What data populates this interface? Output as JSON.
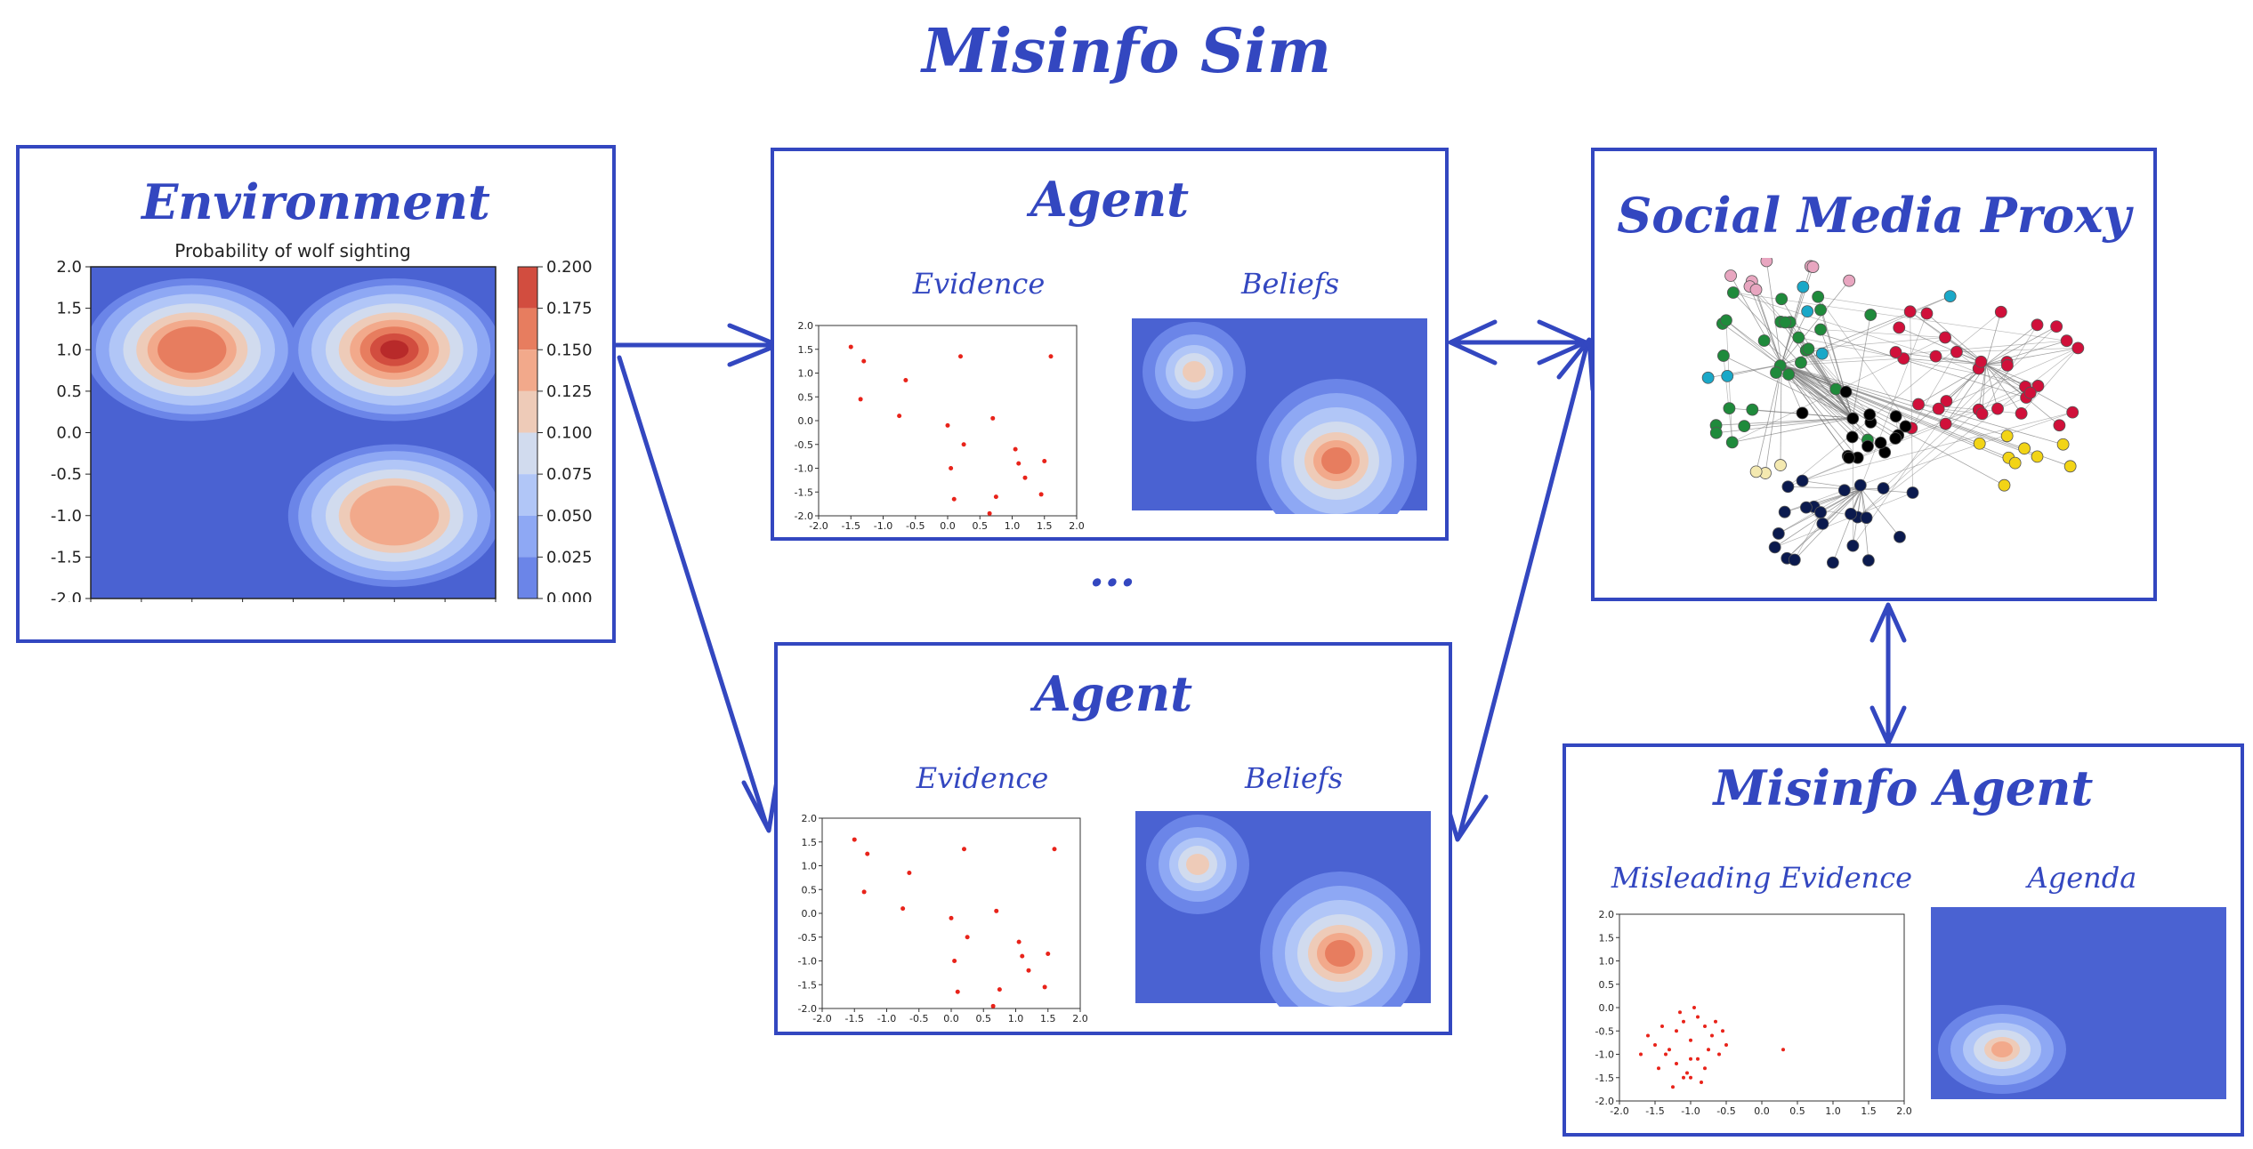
{
  "main_title": "Misinfo Sim",
  "ellipsis": "...",
  "environment": {
    "title": "Environment",
    "chart_title": "Probability of wolf sighting",
    "x_ticks": [
      "-2.0",
      "-1.5",
      "-1.0",
      "-0.5",
      "0.0",
      "0.5",
      "1.0",
      "1.5",
      "2.0"
    ],
    "y_ticks": [
      "2.0",
      "1.5",
      "1.0",
      "0.5",
      "0.0",
      "-0.5",
      "-1.0",
      "-1.5",
      "-2.0"
    ],
    "colorbar_ticks": [
      "0.200",
      "0.175",
      "0.150",
      "0.125",
      "0.100",
      "0.075",
      "0.050",
      "0.025",
      "0.000"
    ]
  },
  "agents": [
    {
      "title": "Agent",
      "evidence_label": "Evidence",
      "beliefs_label": "Beliefs"
    },
    {
      "title": "Agent",
      "evidence_label": "Evidence",
      "beliefs_label": "Beliefs"
    }
  ],
  "small_x_ticks": [
    "-2.0",
    "-1.5",
    "-1.0",
    "-0.5",
    "0.0",
    "0.5",
    "1.0",
    "1.5",
    "2.0"
  ],
  "small_y_ticks": [
    "2.0",
    "1.5",
    "1.0",
    "0.5",
    "0.0",
    "-0.5",
    "-1.0",
    "-1.5",
    "-2.0"
  ],
  "social_media": {
    "title": "Social Media Proxy"
  },
  "misinfo_agent": {
    "title": "Misinfo Agent",
    "evidence_label": "Misleading Evidence",
    "agenda_label": "Agenda"
  },
  "colors": {
    "accent": "#3347c0",
    "bg_blue": "#4a62d2",
    "point_red": "#e8231a"
  },
  "chart_data": [
    {
      "type": "heatmap",
      "title": "Probability of wolf sighting",
      "xlim": [
        -2.0,
        2.0
      ],
      "ylim": [
        -2.0,
        2.0
      ],
      "colorbar_range": [
        0.0,
        0.2
      ],
      "peaks": [
        {
          "x": -1.0,
          "y": 1.0,
          "value": 0.15
        },
        {
          "x": 1.0,
          "y": 1.0,
          "value": 0.19
        },
        {
          "x": 1.0,
          "y": -1.0,
          "value": 0.14
        }
      ]
    },
    {
      "type": "scatter",
      "xlim": [
        -2.0,
        2.0
      ],
      "ylim": [
        -2.0,
        2.0
      ],
      "x": [
        -1.5,
        -1.3,
        -1.35,
        -0.65,
        -0.75,
        0.2,
        1.6,
        0.0,
        0.25,
        0.05,
        0.7,
        0.1,
        1.05,
        1.5,
        1.1,
        1.2,
        1.45,
        0.75,
        0.65
      ],
      "y": [
        1.55,
        1.25,
        0.45,
        0.85,
        0.1,
        1.35,
        1.35,
        -0.1,
        -0.5,
        -1.0,
        0.05,
        -1.65,
        -0.6,
        -0.85,
        -0.9,
        -1.2,
        -1.55,
        -1.6,
        -1.95
      ]
    },
    {
      "type": "scatter",
      "xlim": [
        -2.0,
        2.0
      ],
      "ylim": [
        -2.0,
        2.0
      ],
      "x": [
        -1.2,
        -1.0,
        -1.3,
        -0.9,
        -1.1,
        -0.7,
        -1.5,
        -0.8,
        -1.0,
        -1.4,
        -0.6,
        -1.2,
        -0.9,
        -1.05,
        -0.75,
        -1.35,
        -0.55,
        -1.6,
        -0.85,
        -1.15,
        -0.95,
        -0.65,
        -1.25,
        -1.45,
        -0.5,
        -1.7,
        -0.8,
        -1.0,
        0.3,
        -1.1
      ],
      "y": [
        -0.5,
        -0.7,
        -0.9,
        -1.1,
        -0.3,
        -0.6,
        -0.8,
        -1.3,
        -1.5,
        -0.4,
        -1.0,
        -1.2,
        -0.2,
        -1.4,
        -0.9,
        -1.0,
        -0.5,
        -0.6,
        -1.6,
        -0.1,
        0.0,
        -0.3,
        -1.7,
        -1.3,
        -0.8,
        -1.0,
        -0.4,
        -1.1,
        -0.9,
        -1.5
      ]
    }
  ]
}
